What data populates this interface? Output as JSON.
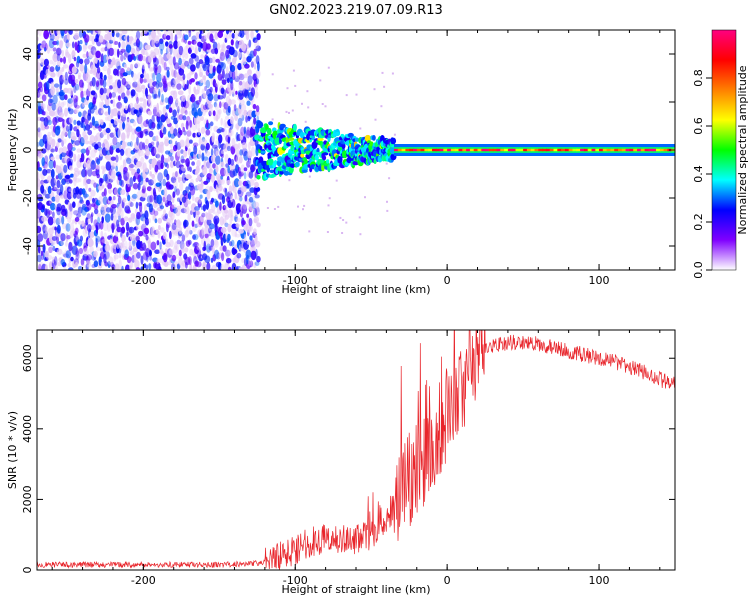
{
  "title": "GN02.2023.219.07.09.R13",
  "colors": {
    "snr_line": "#e8242a",
    "spectrogram_noise": "#8a2be2",
    "axis": "#000000"
  },
  "chart_data": [
    {
      "type": "heatmap",
      "name": "spectrogram",
      "xlabel": "Height of straight line (km)",
      "ylabel": "Frequency (Hz)",
      "xlim": [
        -270,
        150
      ],
      "ylim": [
        -50,
        50
      ],
      "x_ticks": [
        -200,
        -100,
        0,
        100
      ],
      "y_ticks": [
        -40,
        -20,
        0,
        20,
        40
      ],
      "grid": false,
      "regions": [
        {
          "x": [
            -270,
            -125
          ],
          "frequency": [
            -50,
            50
          ],
          "amplitude": [
            0.15,
            0.3
          ]
        },
        {
          "x": [
            -125,
            -35
          ],
          "frequency": [
            -12,
            10
          ],
          "amplitude": [
            0.2,
            0.5
          ]
        },
        {
          "x": [
            -35,
            150
          ],
          "frequency": [
            -1,
            1
          ],
          "amplitude": [
            0.6,
            1.0
          ]
        }
      ],
      "colorbar": {
        "label": "Normalized spectral amplitude",
        "range": [
          0.0,
          1.0
        ],
        "ticks": [
          0.0,
          0.2,
          0.4,
          0.6,
          0.8
        ],
        "colors": [
          "#ffffff",
          "#8000ff",
          "#0000ff",
          "#00ffff",
          "#00ff00",
          "#ffff00",
          "#ff8000",
          "#ff0000",
          "#ff0080"
        ]
      }
    },
    {
      "type": "line",
      "name": "snr",
      "xlabel": "Height of straight line (km)",
      "ylabel": "SNR (10 * v/v)",
      "xlim": [
        -270,
        150
      ],
      "ylim": [
        0,
        6800
      ],
      "x_ticks": [
        -200,
        -100,
        0,
        100
      ],
      "y_ticks": [
        0,
        2000,
        4000,
        6000
      ],
      "grid": false,
      "series": [
        {
          "x": [
            -270,
            -200,
            -150,
            -120,
            -110,
            -100,
            -90,
            -80,
            -70,
            -60,
            -50,
            -45,
            -40,
            -35,
            -30,
            -25,
            -20,
            -15,
            -10,
            -5,
            0,
            5,
            10,
            15,
            20,
            25,
            30,
            40,
            50,
            60,
            70,
            80,
            90,
            100,
            110,
            120,
            130,
            140,
            150
          ],
          "y": [
            150,
            150,
            150,
            200,
            350,
            600,
            800,
            900,
            850,
            900,
            1000,
            1300,
            1500,
            1800,
            2300,
            2600,
            2800,
            3200,
            3600,
            4000,
            4400,
            4800,
            5200,
            5700,
            6000,
            6200,
            6350,
            6450,
            6450,
            6400,
            6300,
            6200,
            6100,
            6000,
            5900,
            5750,
            5600,
            5400,
            5250
          ]
        }
      ]
    }
  ]
}
